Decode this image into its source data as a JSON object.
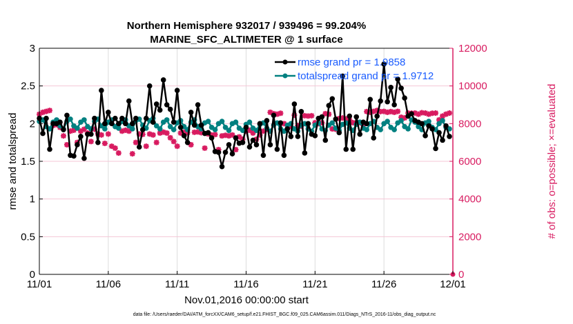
{
  "chart_data": {
    "type": "line",
    "title": [
      "Northern Hemisphere 932017 / 939496 = 99.204%",
      "MARINE_SFC_ALTIMETER @ 1 surface"
    ],
    "xlabel": "Nov.01,2016 00:00:00 start",
    "ylabel_left": "rmse and totalspread",
    "ylabel_right": "# of obs: o=possible; ×=evaluated",
    "footnote": "data file: /Users/raeder/DAI/ATM_forcXX/CAM6_setup/f.e21.FHIST_BGC.f09_025.CAM6assim.011/Diags_NTrS_2016-11/obs_diag_output.nc",
    "x_range": [
      "11/01",
      "12/01"
    ],
    "x_ticks": [
      "11/01",
      "11/06",
      "11/11",
      "11/16",
      "11/21",
      "11/26",
      "12/01"
    ],
    "ylim_left": [
      0,
      3
    ],
    "yticks_left": [
      "0",
      "0.5",
      "1",
      "1.5",
      "2",
      "2.5",
      "3"
    ],
    "ylim_right": [
      0,
      12000
    ],
    "yticks_right": [
      "0",
      "2000",
      "4000",
      "6000",
      "8000",
      "10000",
      "12000"
    ],
    "grid": true,
    "legend_position": "top-right",
    "colors": {
      "rmse": "#000000",
      "totalspread": "#008080",
      "obs": "#d81b60",
      "legend_text": "#1a5cff"
    },
    "series": [
      {
        "name": "rmse grand pr = 1.9858",
        "axis": "left",
        "values": [
          2.07,
          1.87,
          2.07,
          1.66,
          2.0,
          2.0,
          2.02,
          1.92,
          2.11,
          1.58,
          1.57,
          1.72,
          1.83,
          1.54,
          1.86,
          1.86,
          2.07,
          1.75,
          2.44,
          2.0,
          2.15,
          2.0,
          2.07,
          2.0,
          2.07,
          2.0,
          2.3,
          2.0,
          2.07,
          1.69,
          1.92,
          2.07,
          2.5,
          2.02,
          2.26,
          2.18,
          2.58,
          2.25,
          2.19,
          2.02,
          2.44,
          1.95,
          1.84,
          1.75,
          2.15,
          1.98,
          2.25,
          1.98,
          1.87,
          1.88,
          1.81,
          1.63,
          1.62,
          1.43,
          1.62,
          1.72,
          1.6,
          1.81,
          1.74,
          1.75,
          1.95,
          1.69,
          1.78,
          1.72,
          2.0,
          1.58,
          2.04,
          1.72,
          2.11,
          1.66,
          2.01,
          1.58,
          1.93,
          1.83,
          2.26,
          1.83,
          2.16,
          1.61,
          2.0,
          1.86,
          1.84,
          2.07,
          2.09,
          1.78,
          2.24,
          2.33,
          2.06,
          1.88,
          2.63,
          1.66,
          2.1,
          1.66,
          2.09,
          1.86,
          2.02,
          2.0,
          2.32,
          1.81,
          2.1,
          2.3,
          2.79,
          2.29,
          2.48,
          2.25,
          2.59,
          2.47,
          2.34,
          2.1,
          2.13,
          2.04,
          2.02,
          2.0,
          1.84,
          1.97,
          1.93,
          1.67,
          1.88,
          1.78,
          1.97,
          1.83
        ]
      },
      {
        "name": "totalspread grand pr = 1.9712",
        "axis": "left",
        "values": [
          2.03,
          2.05,
          1.96,
          1.93,
          2.02,
          2.05,
          1.97,
          1.93,
          2.03,
          2.06,
          1.97,
          1.94,
          2.02,
          2.05,
          1.96,
          1.93,
          2.03,
          2.06,
          1.97,
          1.93,
          2.02,
          2.05,
          1.96,
          1.94,
          2.03,
          2.05,
          1.97,
          1.93,
          2.04,
          2.06,
          1.98,
          1.94,
          2.04,
          2.07,
          1.97,
          1.93,
          2.02,
          2.05,
          1.96,
          1.92,
          2.01,
          2.04,
          1.96,
          1.92,
          2.02,
          2.05,
          1.96,
          1.93,
          2.01,
          2.03,
          1.95,
          1.92,
          2.0,
          2.03,
          1.95,
          1.91,
          2.0,
          2.02,
          1.94,
          1.91,
          1.99,
          2.02,
          1.94,
          1.91,
          1.99,
          2.01,
          1.94,
          1.9,
          1.98,
          2.01,
          1.93,
          1.9,
          1.98,
          2.0,
          1.93,
          1.9,
          1.98,
          2.0,
          1.93,
          1.9,
          1.98,
          2.01,
          1.93,
          1.91,
          1.98,
          2.01,
          1.94,
          1.91,
          1.99,
          2.01,
          1.94,
          1.91,
          1.99,
          2.02,
          1.94,
          1.92,
          2.0,
          2.03,
          1.95,
          1.92,
          2.0,
          2.03,
          1.95,
          1.92,
          2.01,
          2.04,
          1.96,
          1.93,
          2.05,
          2.02,
          1.96,
          1.92,
          2.01,
          2.03,
          1.95,
          1.92,
          2.0,
          2.04,
          1.95,
          1.93
        ]
      },
      {
        "name": "# obs evaluated",
        "axis": "right",
        "values": [
          8500,
          8600,
          8650,
          8700,
          7900,
          7950,
          7800,
          7350,
          6880,
          7600,
          7650,
          7000,
          7600,
          7700,
          7500,
          7050,
          7700,
          7450,
          7400,
          6950,
          7450,
          6800,
          6700,
          6440,
          7600,
          7650,
          7600,
          6400,
          7000,
          7450,
          7430,
          6800,
          7450,
          7400,
          7000,
          7500,
          7550,
          7500,
          7250,
          7050,
          6800,
          7500,
          7550,
          7520,
          6880,
          7540,
          7560,
          7520,
          6700,
          7450,
          7400,
          7420,
          6620,
          7350,
          7380,
          7350,
          7400,
          6620,
          7300,
          7170,
          7600,
          7650,
          7500,
          7170,
          7400,
          7600,
          7700,
          8600,
          8530,
          8500,
          8550,
          8000,
          7900,
          7850,
          8450,
          7900,
          7870,
          8420,
          8400,
          8420,
          8050,
          8000,
          8050,
          8530,
          8500,
          7720,
          7700,
          8270,
          8300,
          8250,
          8200,
          8050,
          8000,
          8050,
          7900,
          8640,
          8600,
          8650,
          8700,
          8640,
          8650,
          8600,
          8640,
          8600,
          8650,
          8340,
          8300,
          8560,
          8550,
          8560,
          8500,
          8580,
          8560,
          8500,
          8550,
          8560,
          8200,
          8400,
          8500,
          8560,
          0
        ]
      }
    ]
  }
}
